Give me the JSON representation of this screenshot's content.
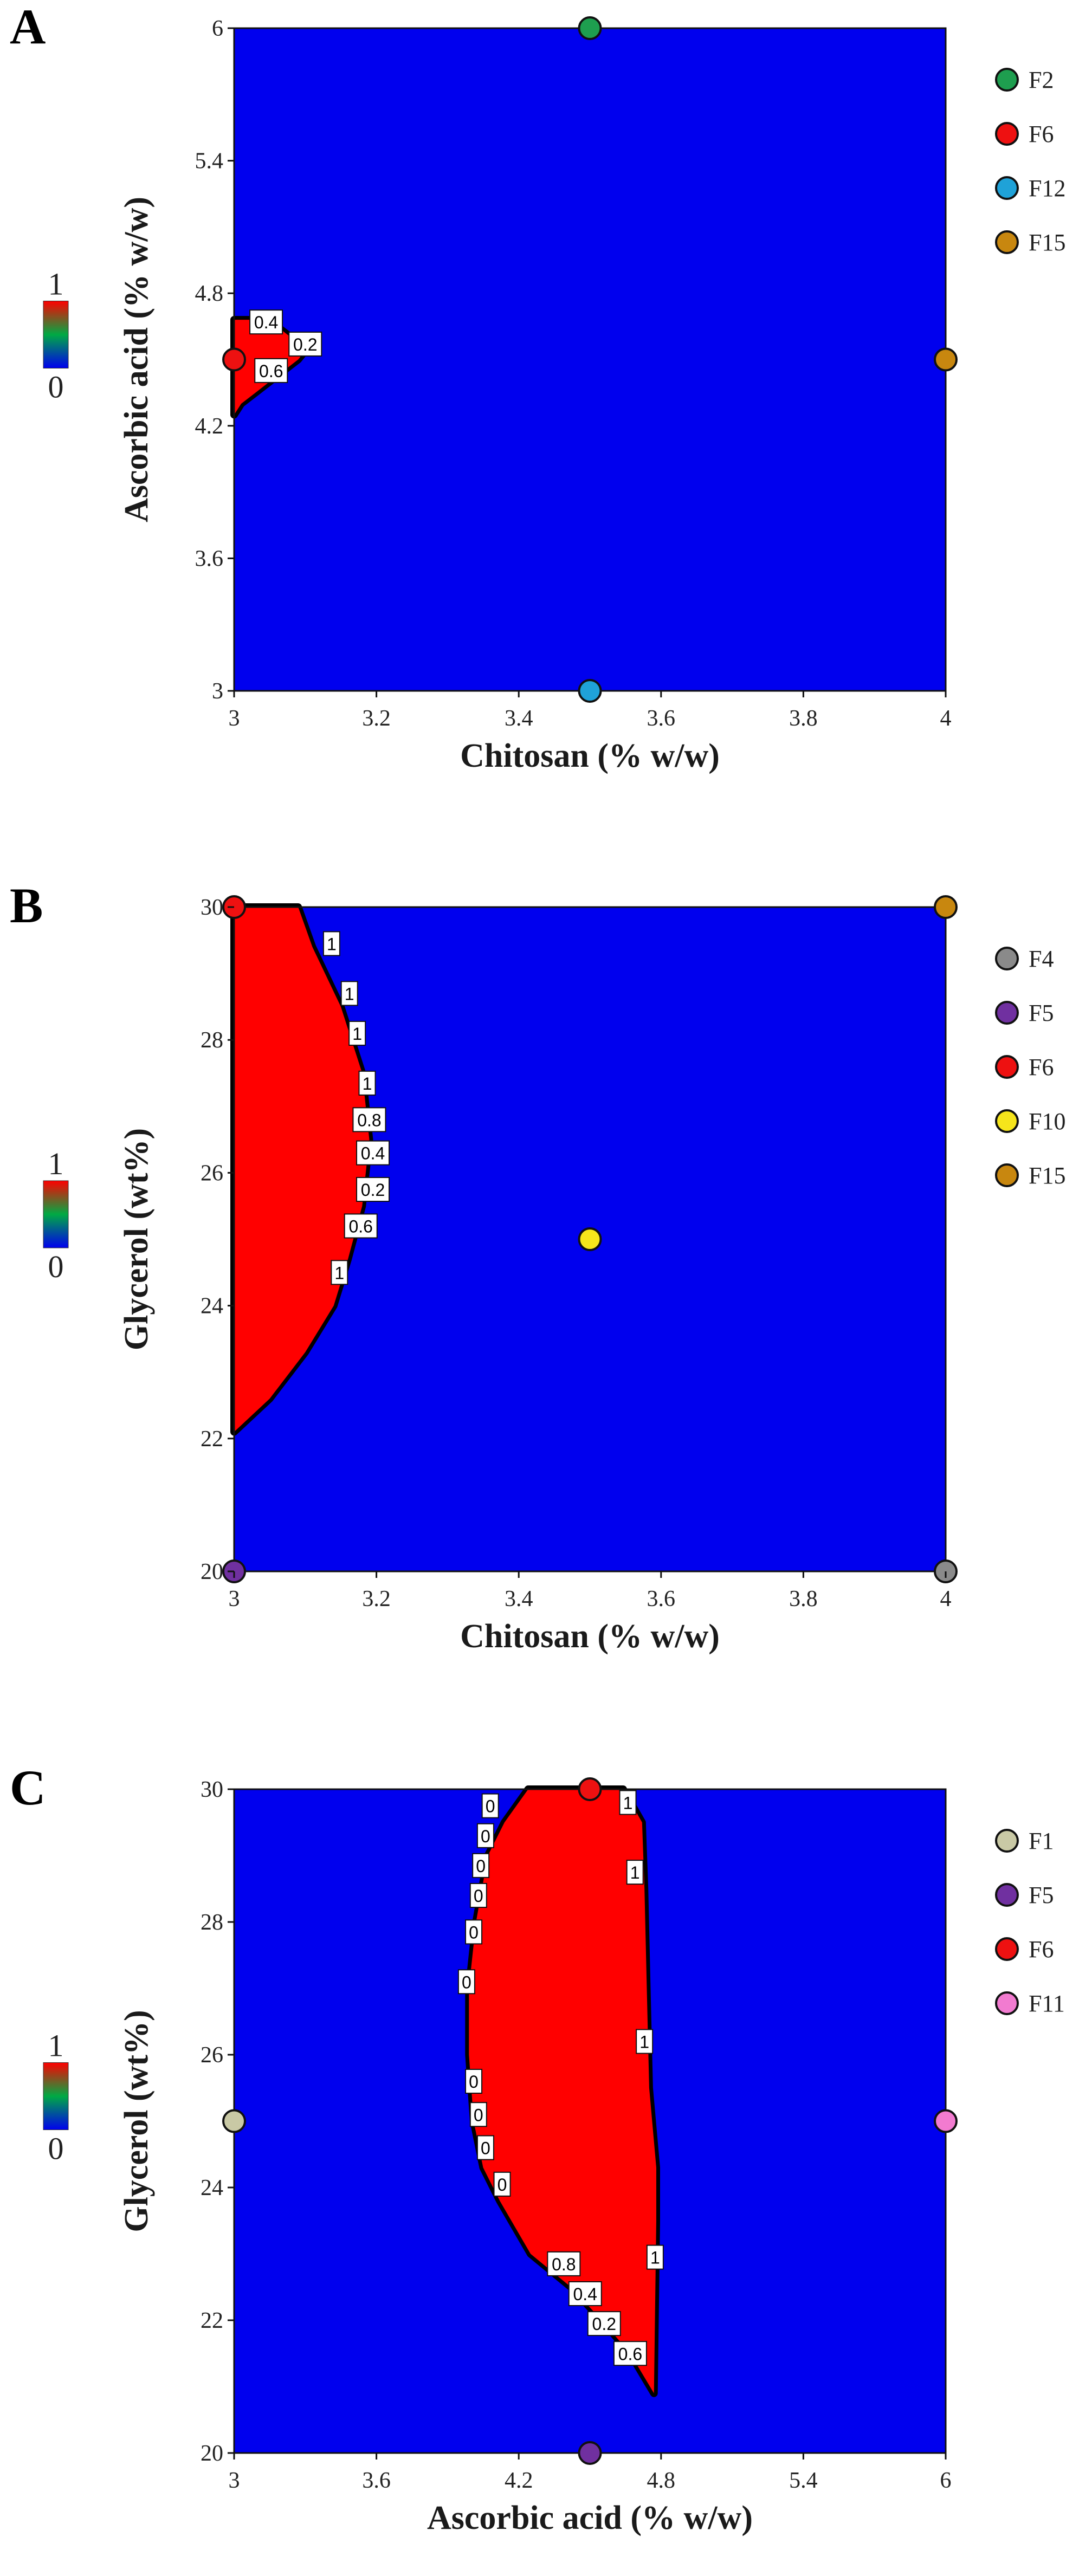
{
  "colors": {
    "low": "#0000ee",
    "high": "#ff0000",
    "boundary": "#000000",
    "mid": "#00aa44"
  },
  "chart_data": [
    {
      "type": "contour",
      "panel": "A",
      "xlabel": "Chitosan (% w/w)",
      "ylabel": "Ascorbic acid (% w/w)",
      "xlim": [
        3,
        4
      ],
      "ylim": [
        3,
        6
      ],
      "xticks": [
        "3",
        "3.2",
        "3.4",
        "3.6",
        "3.8",
        "4"
      ],
      "yticks": [
        "3",
        "3.6",
        "4.2",
        "4.8",
        "5.4",
        "6"
      ],
      "colorbar": {
        "max": "1",
        "min": "0"
      },
      "region": [
        [
          3,
          4.25
        ],
        [
          3.01,
          4.3
        ],
        [
          3.03,
          4.35
        ],
        [
          3.05,
          4.4
        ],
        [
          3.07,
          4.45
        ],
        [
          3.09,
          4.5
        ],
        [
          3.1,
          4.54
        ],
        [
          3.08,
          4.6
        ],
        [
          3.06,
          4.65
        ],
        [
          3.03,
          4.68
        ],
        [
          3,
          4.68
        ]
      ],
      "contour_labels": [
        {
          "text": "0.4",
          "x": 3.045,
          "y": 4.67
        },
        {
          "text": "0.2",
          "x": 3.1,
          "y": 4.57
        },
        {
          "text": "0.6",
          "x": 3.052,
          "y": 4.45
        }
      ],
      "points": [
        {
          "name": "F2",
          "x": 3.5,
          "y": 6,
          "color": "#1e9e4f"
        },
        {
          "name": "F6",
          "x": 3,
          "y": 4.5,
          "color": "#ee1111"
        },
        {
          "name": "F12",
          "x": 3.5,
          "y": 3,
          "color": "#1fa2d8"
        },
        {
          "name": "F15",
          "x": 4,
          "y": 4.5,
          "color": "#c8870f"
        }
      ]
    },
    {
      "type": "contour",
      "panel": "B",
      "xlabel": "Chitosan (% w/w)",
      "ylabel": "Glycerol (wt%)",
      "xlim": [
        3,
        4
      ],
      "ylim": [
        20,
        30
      ],
      "xticks": [
        "3",
        "3.2",
        "3.4",
        "3.6",
        "3.8",
        "4"
      ],
      "yticks": [
        "20",
        "22",
        "24",
        "26",
        "28",
        "30"
      ],
      "colorbar": {
        "max": "1",
        "min": "0"
      },
      "region": [
        [
          3,
          22.1
        ],
        [
          3.05,
          22.6
        ],
        [
          3.1,
          23.3
        ],
        [
          3.14,
          24
        ],
        [
          3.16,
          24.7
        ],
        [
          3.18,
          25.5
        ],
        [
          3.19,
          26.5
        ],
        [
          3.18,
          27.5
        ],
        [
          3.15,
          28.5
        ],
        [
          3.11,
          29.4
        ],
        [
          3.09,
          30
        ],
        [
          3,
          30
        ]
      ],
      "contour_labels": [
        {
          "text": "1",
          "x": 3.137,
          "y": 29.45
        },
        {
          "text": "1",
          "x": 3.162,
          "y": 28.7
        },
        {
          "text": "1",
          "x": 3.173,
          "y": 28.1
        },
        {
          "text": "1",
          "x": 3.187,
          "y": 27.35
        },
        {
          "text": "0.8",
          "x": 3.19,
          "y": 26.8
        },
        {
          "text": "0.4",
          "x": 3.195,
          "y": 26.3
        },
        {
          "text": "0.2",
          "x": 3.195,
          "y": 25.75
        },
        {
          "text": "0.6",
          "x": 3.178,
          "y": 25.2
        },
        {
          "text": "1",
          "x": 3.148,
          "y": 24.5
        }
      ],
      "points": [
        {
          "name": "F4",
          "x": 4,
          "y": 20,
          "color": "#8a8a8a"
        },
        {
          "name": "F5",
          "x": 3,
          "y": 20,
          "color": "#7030a0"
        },
        {
          "name": "F6",
          "x": 3,
          "y": 30,
          "color": "#ee1111"
        },
        {
          "name": "F10",
          "x": 3.5,
          "y": 25,
          "color": "#f6e51b"
        },
        {
          "name": "F15",
          "x": 4,
          "y": 30,
          "color": "#c8870f"
        }
      ]
    },
    {
      "type": "contour",
      "panel": "C",
      "xlabel": "Ascorbic acid (% w/w)",
      "ylabel": "Glycerol (wt%)",
      "xlim": [
        3,
        6
      ],
      "ylim": [
        20,
        30
      ],
      "xticks": [
        "3",
        "3.6",
        "4.2",
        "4.8",
        "5.4",
        "6"
      ],
      "yticks": [
        "20",
        "22",
        "24",
        "26",
        "28",
        "30"
      ],
      "colorbar": {
        "max": "1",
        "min": "0"
      },
      "region": [
        [
          4.77,
          20.9
        ],
        [
          4.78,
          23.5
        ],
        [
          4.78,
          24.3
        ],
        [
          4.75,
          25.5
        ],
        [
          4.74,
          27
        ],
        [
          4.73,
          28.5
        ],
        [
          4.72,
          29.5
        ],
        [
          4.64,
          30
        ],
        [
          4.24,
          30
        ],
        [
          4.14,
          29.5
        ],
        [
          4.07,
          29
        ],
        [
          4.02,
          28
        ],
        [
          3.99,
          27
        ],
        [
          3.99,
          26
        ],
        [
          4.01,
          25
        ],
        [
          4.05,
          24.3
        ],
        [
          4.12,
          23.8
        ],
        [
          4.25,
          23
        ],
        [
          4.42,
          22.5
        ],
        [
          4.55,
          22
        ],
        [
          4.67,
          21.5
        ],
        [
          4.77,
          20.9
        ]
      ],
      "contour_labels": [
        {
          "text": "1",
          "x": 4.66,
          "y": 29.8
        },
        {
          "text": "1",
          "x": 4.69,
          "y": 28.75
        },
        {
          "text": "1",
          "x": 4.73,
          "y": 26.2
        },
        {
          "text": "1",
          "x": 4.775,
          "y": 22.95
        },
        {
          "text": "0",
          "x": 4.08,
          "y": 29.75
        },
        {
          "text": "0",
          "x": 4.06,
          "y": 29.3
        },
        {
          "text": "0",
          "x": 4.04,
          "y": 28.85
        },
        {
          "text": "0",
          "x": 4.03,
          "y": 28.4
        },
        {
          "text": "0",
          "x": 4.01,
          "y": 27.85
        },
        {
          "text": "0",
          "x": 3.98,
          "y": 27.1
        },
        {
          "text": "0",
          "x": 4.01,
          "y": 25.6
        },
        {
          "text": "0",
          "x": 4.03,
          "y": 25.1
        },
        {
          "text": "0",
          "x": 4.06,
          "y": 24.6
        },
        {
          "text": "0",
          "x": 4.13,
          "y": 24.05
        },
        {
          "text": "0.8",
          "x": 4.39,
          "y": 22.85
        },
        {
          "text": "0.4",
          "x": 4.48,
          "y": 22.4
        },
        {
          "text": "0.2",
          "x": 4.56,
          "y": 21.95
        },
        {
          "text": "0.6",
          "x": 4.67,
          "y": 21.5
        }
      ],
      "points": [
        {
          "name": "F1",
          "x": 3,
          "y": 25,
          "color": "#c9c9a5"
        },
        {
          "name": "F5",
          "x": 4.5,
          "y": 20,
          "color": "#7030a0"
        },
        {
          "name": "F6",
          "x": 4.5,
          "y": 30,
          "color": "#ee1111"
        },
        {
          "name": "F11",
          "x": 6,
          "y": 25,
          "color": "#f27bd0"
        }
      ]
    }
  ]
}
